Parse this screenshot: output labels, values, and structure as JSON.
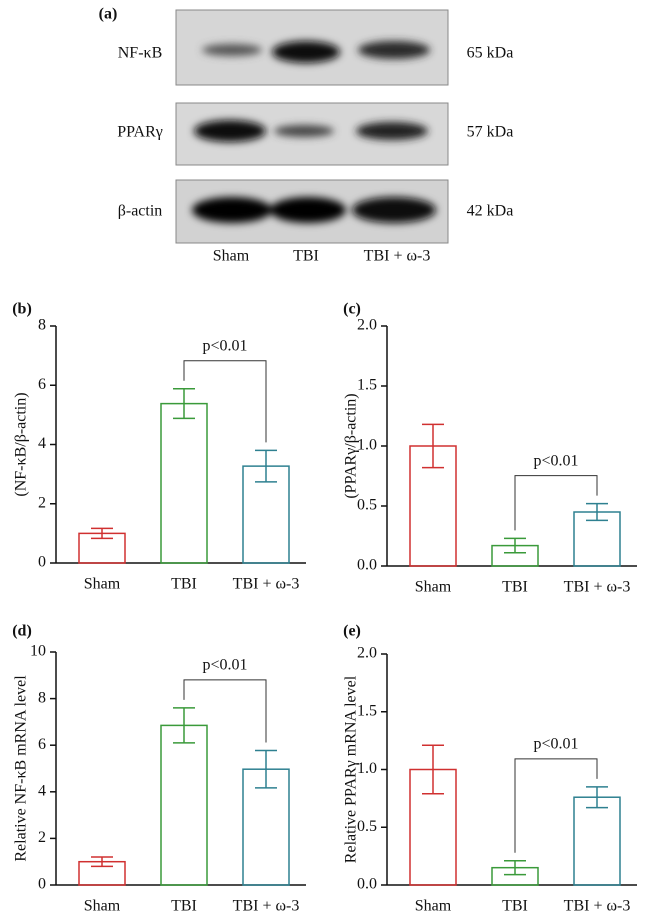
{
  "blot": {
    "label": "(a)",
    "rows": [
      {
        "name": "NF-κB",
        "kda": "65 kDa"
      },
      {
        "name": "PPARγ",
        "kda": "57 kDa"
      },
      {
        "name": "β-actin",
        "kda": "42 kDa"
      }
    ],
    "lanes": [
      "Sham",
      "TBI",
      "TBI + ω-3"
    ]
  },
  "chart_data": [
    {
      "type": "bar",
      "panel": "(b)",
      "ylabel": "(NF-κB/β-actin)",
      "categories": [
        "Sham",
        "TBI",
        "TBI + ω-3"
      ],
      "values": [
        1.0,
        5.38,
        3.27
      ],
      "errors": [
        0.17,
        0.5,
        0.53
      ],
      "colors": [
        "#d03030",
        "#3a9a3a",
        "#2e8090"
      ],
      "ylim": [
        0,
        8
      ],
      "yticks": [
        0,
        2,
        4,
        6,
        8
      ],
      "annotation": "p<0.01"
    },
    {
      "type": "bar",
      "panel": "(c)",
      "ylabel": "(PPARγ/β-actin)",
      "categories": [
        "Sham",
        "TBI",
        "TBI + ω-3"
      ],
      "values": [
        1.0,
        0.17,
        0.45
      ],
      "errors": [
        0.18,
        0.06,
        0.07
      ],
      "colors": [
        "#d03030",
        "#3a9a3a",
        "#2e8090"
      ],
      "ylim": [
        0,
        2
      ],
      "yticks": [
        {
          "value": 0,
          "label": "0.0"
        },
        {
          "value": 0.5,
          "label": "0.5"
        },
        {
          "value": 1,
          "label": "1.0"
        },
        {
          "value": 1.5,
          "label": "1.5"
        },
        {
          "value": 2,
          "label": "2.0"
        }
      ],
      "annotation": "p<0.01"
    },
    {
      "type": "bar",
      "panel": "(d)",
      "ylabel": "Relative NF-κB mRNA level",
      "categories": [
        "Sham",
        "TBI",
        "TBI + ω-3"
      ],
      "values": [
        1.0,
        6.85,
        4.97
      ],
      "errors": [
        0.2,
        0.75,
        0.8
      ],
      "colors": [
        "#d03030",
        "#3a9a3a",
        "#2e8090"
      ],
      "ylim": [
        0,
        10
      ],
      "yticks": [
        0,
        2,
        4,
        6,
        8,
        10
      ],
      "annotation": "p<0.01"
    },
    {
      "type": "bar",
      "panel": "(e)",
      "ylabel": "Relative PPARγ mRNA level",
      "categories": [
        "Sham",
        "TBI",
        "TBI + ω-3"
      ],
      "values": [
        1.0,
        0.15,
        0.76
      ],
      "errors": [
        0.21,
        0.06,
        0.09
      ],
      "colors": [
        "#d03030",
        "#3a9a3a",
        "#2e8090"
      ],
      "ylim": [
        0,
        2
      ],
      "yticks": [
        {
          "value": 0,
          "label": "0.0"
        },
        {
          "value": 0.5,
          "label": "0.5"
        },
        {
          "value": 1,
          "label": "1.0"
        },
        {
          "value": 1.5,
          "label": "1.5"
        },
        {
          "value": 2,
          "label": "2.0"
        }
      ],
      "annotation": "p<0.01"
    }
  ]
}
